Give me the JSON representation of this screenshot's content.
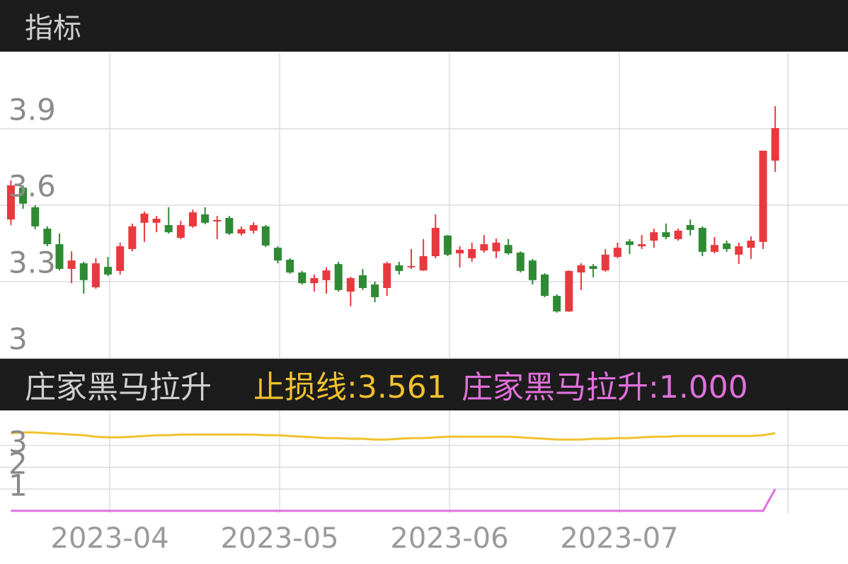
{
  "header": {
    "title": "指标"
  },
  "chart_data": [
    {
      "type": "candlestick",
      "up_color": "#e8393e",
      "down_color": "#2f8a34",
      "ylim": [
        3,
        4.2
      ],
      "yticks": [
        3,
        3.3,
        3.6,
        3.9
      ],
      "grid": true,
      "open": [
        3.544,
        3.669,
        3.592,
        3.508,
        3.447,
        3.35,
        3.372,
        3.278,
        3.358,
        3.342,
        3.428,
        3.531,
        3.531,
        3.522,
        3.472,
        3.517,
        3.564,
        3.536,
        3.55,
        3.489,
        3.5,
        3.517,
        3.433,
        3.386,
        3.336,
        3.294,
        3.306,
        3.369,
        3.261,
        3.325,
        3.289,
        3.275,
        3.364,
        3.356,
        3.344,
        3.4,
        3.481,
        3.411,
        3.392,
        3.422,
        3.419,
        3.444,
        3.414,
        3.383,
        3.328,
        3.244,
        3.183,
        3.336,
        3.361,
        3.344,
        3.397,
        3.458,
        3.439,
        3.461,
        3.494,
        3.467,
        3.522,
        3.511,
        3.417,
        3.45,
        3.406,
        3.433,
        3.456,
        3.775
      ],
      "high": [
        3.697,
        3.678,
        3.6,
        3.517,
        3.489,
        3.419,
        3.378,
        3.392,
        3.397,
        3.453,
        3.528,
        3.575,
        3.558,
        3.592,
        3.539,
        3.583,
        3.592,
        3.558,
        3.558,
        3.517,
        3.533,
        3.522,
        3.439,
        3.392,
        3.342,
        3.328,
        3.356,
        3.378,
        3.319,
        3.35,
        3.3,
        3.378,
        3.378,
        3.428,
        3.467,
        3.564,
        3.483,
        3.439,
        3.453,
        3.483,
        3.469,
        3.467,
        3.419,
        3.389,
        3.333,
        3.25,
        3.344,
        3.372,
        3.369,
        3.428,
        3.453,
        3.467,
        3.483,
        3.508,
        3.528,
        3.508,
        3.544,
        3.517,
        3.475,
        3.461,
        3.453,
        3.478,
        3.814,
        3.989
      ],
      "low": [
        3.522,
        3.586,
        3.506,
        3.439,
        3.344,
        3.294,
        3.253,
        3.272,
        3.322,
        3.328,
        3.419,
        3.456,
        3.494,
        3.489,
        3.467,
        3.511,
        3.525,
        3.467,
        3.483,
        3.481,
        3.489,
        3.436,
        3.372,
        3.331,
        3.289,
        3.261,
        3.253,
        3.261,
        3.203,
        3.267,
        3.219,
        3.244,
        3.328,
        3.35,
        3.342,
        3.392,
        3.4,
        3.356,
        3.378,
        3.414,
        3.392,
        3.406,
        3.336,
        3.289,
        3.239,
        3.178,
        3.181,
        3.267,
        3.317,
        3.339,
        3.392,
        3.408,
        3.428,
        3.433,
        3.467,
        3.461,
        3.481,
        3.4,
        3.411,
        3.417,
        3.369,
        3.389,
        3.428,
        3.731
      ],
      "close": [
        3.678,
        3.606,
        3.517,
        3.447,
        3.35,
        3.383,
        3.306,
        3.372,
        3.328,
        3.439,
        3.517,
        3.567,
        3.547,
        3.494,
        3.522,
        3.572,
        3.531,
        3.542,
        3.489,
        3.506,
        3.522,
        3.442,
        3.383,
        3.336,
        3.294,
        3.314,
        3.344,
        3.267,
        3.314,
        3.275,
        3.239,
        3.372,
        3.342,
        3.361,
        3.4,
        3.511,
        3.406,
        3.425,
        3.428,
        3.447,
        3.453,
        3.411,
        3.342,
        3.306,
        3.244,
        3.183,
        3.342,
        3.364,
        3.35,
        3.406,
        3.433,
        3.444,
        3.447,
        3.494,
        3.475,
        3.5,
        3.503,
        3.417,
        3.444,
        3.428,
        3.439,
        3.461,
        3.814,
        3.903
      ]
    },
    {
      "type": "line",
      "title": "庄家黑马拉升",
      "separator": ":",
      "ylim": [
        -0.1,
        4.6
      ],
      "yticks": [
        1,
        2,
        3
      ],
      "grid": true,
      "xlim": [
        -0.9,
        69.0
      ],
      "xticks": [
        {
          "value": 8.15,
          "label": "2023-04"
        },
        {
          "value": 22.15,
          "label": "2023-05"
        },
        {
          "value": 36.15,
          "label": "2023-06"
        },
        {
          "value": 50.15,
          "label": "2023-07"
        },
        {
          "value": 64.05,
          "label": null
        }
      ],
      "series": [
        {
          "name": "止损线",
          "color": "#f2c12e",
          "last_value_label": "3.561",
          "values": [
            3.561,
            3.593,
            3.593,
            3.561,
            3.529,
            3.496,
            3.464,
            3.399,
            3.367,
            3.367,
            3.399,
            3.431,
            3.464,
            3.464,
            3.496,
            3.496,
            3.496,
            3.496,
            3.496,
            3.496,
            3.496,
            3.464,
            3.464,
            3.431,
            3.399,
            3.367,
            3.334,
            3.334,
            3.302,
            3.302,
            3.269,
            3.269,
            3.302,
            3.334,
            3.334,
            3.367,
            3.399,
            3.399,
            3.399,
            3.399,
            3.399,
            3.399,
            3.367,
            3.334,
            3.302,
            3.269,
            3.269,
            3.269,
            3.302,
            3.302,
            3.334,
            3.334,
            3.367,
            3.399,
            3.399,
            3.431,
            3.431,
            3.431,
            3.431,
            3.431,
            3.431,
            3.431,
            3.464,
            3.561
          ]
        },
        {
          "name": "庄家黑马拉升",
          "color": "#e070dc",
          "last_value_label": "1.000",
          "values": [
            0,
            0,
            0,
            0,
            0,
            0,
            0,
            0,
            0,
            0,
            0,
            0,
            0,
            0,
            0,
            0,
            0,
            0,
            0,
            0,
            0,
            0,
            0,
            0,
            0,
            0,
            0,
            0,
            0,
            0,
            0,
            0,
            0,
            0,
            0,
            0,
            0,
            0,
            0,
            0,
            0,
            0,
            0,
            0,
            0,
            0,
            0,
            0,
            0,
            0,
            0,
            0,
            0,
            0,
            0,
            0,
            0,
            0,
            0,
            0,
            0,
            0,
            0,
            1
          ]
        }
      ]
    }
  ]
}
